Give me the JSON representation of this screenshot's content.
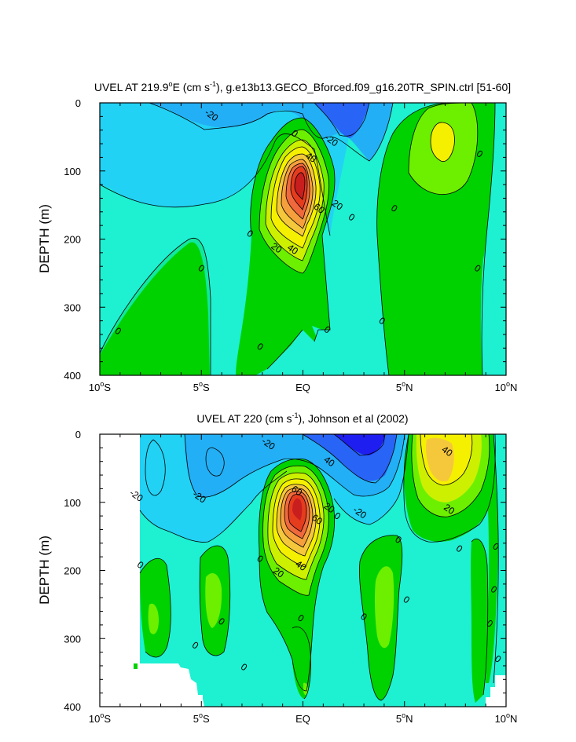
{
  "chart_data": [
    {
      "type": "contour",
      "title": "UVEL AT 219.9°E (cm s⁻¹), g.e13b13.GECO_Bforced.f09_g16.20TR_SPIN.ctrl [51-60]",
      "title_parts": {
        "pre": "UVEL AT 219.9",
        "deg": "o",
        "mid": "E (cm s",
        "sup": "-1",
        "post": "), g.e13b13.GECO_Bforced.f09_g16.20TR_SPIN.ctrl [51-60]"
      },
      "ylabel": "DEPTH (m)",
      "xlim": [
        -10,
        10
      ],
      "ylim": [
        400,
        0
      ],
      "xticks": [
        {
          "value": -10,
          "num": "10",
          "deg": "o",
          "hem": "S"
        },
        {
          "value": -5,
          "num": "5",
          "deg": "o",
          "hem": "S"
        },
        {
          "value": 0,
          "num": "EQ",
          "deg": "",
          "hem": ""
        },
        {
          "value": 5,
          "num": "5",
          "deg": "o",
          "hem": "N"
        },
        {
          "value": 10,
          "num": "10",
          "deg": "o",
          "hem": "N"
        }
      ],
      "yticks": [
        "0",
        "100",
        "200",
        "300",
        "400"
      ],
      "contour_labels": [
        {
          "text": "-20",
          "lat": -4.5,
          "depth": 18
        },
        {
          "text": "0",
          "lat": -0.4,
          "depth": 45
        },
        {
          "text": "-20",
          "lat": 1.4,
          "depth": 55
        },
        {
          "text": "40",
          "lat": 0.4,
          "depth": 80
        },
        {
          "text": "0",
          "lat": 8.7,
          "depth": 75
        },
        {
          "text": "60",
          "lat": 0.8,
          "depth": 155
        },
        {
          "text": "20",
          "lat": 1.7,
          "depth": 150
        },
        {
          "text": "0",
          "lat": 2.4,
          "depth": 168
        },
        {
          "text": "0",
          "lat": 4.5,
          "depth": 155
        },
        {
          "text": "0",
          "lat": -2.6,
          "depth": 192
        },
        {
          "text": "20",
          "lat": -1.3,
          "depth": 213
        },
        {
          "text": "40",
          "lat": -0.5,
          "depth": 215
        },
        {
          "text": "0",
          "lat": -5,
          "depth": 243
        },
        {
          "text": "0",
          "lat": 8.6,
          "depth": 243
        },
        {
          "text": "0",
          "lat": -9.1,
          "depth": 335
        },
        {
          "text": "0",
          "lat": 3.9,
          "depth": 320
        },
        {
          "text": "0",
          "lat": 1.2,
          "depth": 333
        },
        {
          "text": "0",
          "lat": -2.1,
          "depth": 358
        }
      ],
      "fill_colors": {
        "minus60": "#1e1ef0",
        "minus40": "#2864f5",
        "minus20": "#23aff5",
        "minus10": "#21d2f5",
        "minus0": "#1ef0d2",
        "zero": "#10e8a0",
        "plus10": "#00d200",
        "plus20": "#6cf000",
        "plus30": "#cdf000",
        "plus40": "#f5f000",
        "plus50": "#f5c83c",
        "plus60": "#f5a03c",
        "plus70": "#f0693c",
        "plus80": "#e63c1e",
        "plus90": "#c81e1e"
      }
    },
    {
      "type": "contour",
      "title": "UVEL AT 220 (cm s⁻¹), Johnson et al (2002)",
      "title_parts": {
        "pre": "UVEL AT 220 (cm s",
        "sup": "-1",
        "post": "), Johnson et al (2002)"
      },
      "ylabel": "DEPTH (m)",
      "xlim": [
        -10,
        10
      ],
      "ylim": [
        400,
        0
      ],
      "xticks": [
        {
          "value": -10,
          "num": "10",
          "deg": "o",
          "hem": "S"
        },
        {
          "value": -5,
          "num": "5",
          "deg": "o",
          "hem": "S"
        },
        {
          "value": 0,
          "num": "EQ",
          "deg": "",
          "hem": ""
        },
        {
          "value": 5,
          "num": "5",
          "deg": "o",
          "hem": "N"
        },
        {
          "value": 10,
          "num": "10",
          "deg": "o",
          "hem": "N"
        }
      ],
      "yticks": [
        "0",
        "100",
        "200",
        "300",
        "400"
      ],
      "contour_labels": [
        {
          "text": "-20",
          "lat": -1.7,
          "depth": 14
        },
        {
          "text": "40",
          "lat": 7.1,
          "depth": 25
        },
        {
          "text": "40",
          "lat": 1.3,
          "depth": 40
        },
        {
          "text": "-20",
          "lat": -8.2,
          "depth": 90
        },
        {
          "text": "-20",
          "lat": -5.1,
          "depth": 92
        },
        {
          "text": "60",
          "lat": -0.3,
          "depth": 83
        },
        {
          "text": "20",
          "lat": 7.2,
          "depth": 110
        },
        {
          "text": "-20",
          "lat": 2.8,
          "depth": 115
        },
        {
          "text": "20",
          "lat": 1.3,
          "depth": 108
        },
        {
          "text": "60",
          "lat": 0.7,
          "depth": 125
        },
        {
          "text": "0",
          "lat": 1.7,
          "depth": 120
        },
        {
          "text": "0",
          "lat": 4.7,
          "depth": 155
        },
        {
          "text": "0",
          "lat": 9.5,
          "depth": 165
        },
        {
          "text": "0",
          "lat": 7.7,
          "depth": 168
        },
        {
          "text": "0",
          "lat": -2.1,
          "depth": 183
        },
        {
          "text": "0",
          "lat": -8.0,
          "depth": 192
        },
        {
          "text": "20",
          "lat": -1.2,
          "depth": 203
        },
        {
          "text": "40",
          "lat": -0.1,
          "depth": 193
        },
        {
          "text": "0",
          "lat": 9.4,
          "depth": 228
        },
        {
          "text": "0",
          "lat": 5.1,
          "depth": 243
        },
        {
          "text": "0",
          "lat": 3.0,
          "depth": 268
        },
        {
          "text": "0",
          "lat": -4.0,
          "depth": 275
        },
        {
          "text": "0",
          "lat": 9.2,
          "depth": 278
        },
        {
          "text": "0",
          "lat": -5.3,
          "depth": 310
        },
        {
          "text": "0",
          "lat": 9.6,
          "depth": 330
        },
        {
          "text": "0",
          "lat": -0.1,
          "depth": 270
        },
        {
          "text": "0",
          "lat": -2.9,
          "depth": 342
        }
      ],
      "fill_colors": {
        "minus60": "#1e1ef0",
        "minus40": "#2864f5",
        "minus20": "#23aff5",
        "minus10": "#21d2f5",
        "minus0": "#1ef0d2",
        "zero": "#10e8a0",
        "plus10": "#00d200",
        "plus20": "#6cf000",
        "plus30": "#cdf000",
        "plus40": "#f5f000",
        "plus50": "#f5c83c",
        "plus60": "#f5a03c",
        "plus70": "#f0693c",
        "plus80": "#e63c1e",
        "plus90": "#c81e1e"
      }
    }
  ]
}
